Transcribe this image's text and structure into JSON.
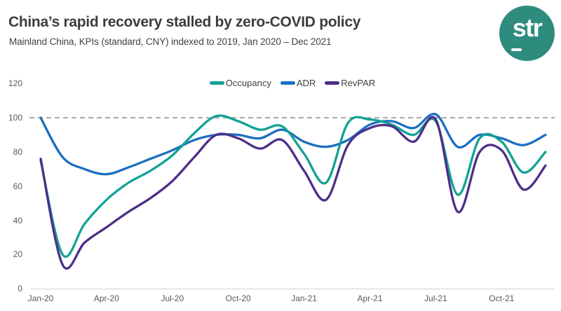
{
  "header": {
    "title": "China’s rapid recovery stalled by zero-COVID policy",
    "subtitle": "Mainland China, KPIs (standard, CNY) indexed to 2019, Jan 2020 – Dec 2021",
    "logo_text": "str"
  },
  "colors": {
    "occupancy": "#12A295",
    "adr": "#1B6FC0",
    "revpar": "#4E2E88",
    "logo_background": "#2E8C7E",
    "reference_line": "#A6A6A6",
    "axis_line": "#D9D9D9",
    "tick_text": "#595959",
    "title_text": "#3C3C3C"
  },
  "chart_data": {
    "type": "line",
    "title": "China’s rapid recovery stalled by zero-COVID policy",
    "subtitle": "Mainland China, KPIs (standard, CNY) indexed to 2019, Jan 2020 – Dec 2021",
    "x": [
      "Jan-20",
      "Feb-20",
      "Mar-20",
      "Apr-20",
      "May-20",
      "Jun-20",
      "Jul-20",
      "Aug-20",
      "Sep-20",
      "Oct-20",
      "Nov-20",
      "Dec-20",
      "Jan-21",
      "Feb-21",
      "Mar-21",
      "Apr-21",
      "May-21",
      "Jun-21",
      "Jul-21",
      "Aug-21",
      "Sep-21",
      "Oct-21",
      "Nov-21",
      "Dec-21"
    ],
    "series": [
      {
        "name": "Occupancy",
        "color": "#12A295",
        "values": [
          75,
          20,
          38,
          52,
          62,
          69,
          78,
          91,
          101,
          98,
          93,
          95,
          79,
          62,
          97,
          99,
          96,
          90,
          98,
          55,
          88,
          86,
          68,
          80
        ]
      },
      {
        "name": "ADR",
        "color": "#1B6FC0",
        "values": [
          100,
          77,
          70,
          67,
          71,
          76,
          81,
          87,
          90,
          90,
          88,
          93,
          86,
          83,
          87,
          96,
          98,
          94,
          102,
          83,
          90,
          88,
          84,
          90
        ]
      },
      {
        "name": "RevPAR",
        "color": "#4E2E88",
        "values": [
          76,
          14,
          27,
          36,
          45,
          53,
          63,
          77,
          90,
          88,
          82,
          87,
          69,
          52,
          84,
          94,
          95,
          86,
          99,
          45,
          80,
          81,
          58,
          72
        ]
      }
    ],
    "ylim": [
      0,
      120
    ],
    "yticks": [
      0,
      20,
      40,
      60,
      80,
      100,
      120
    ],
    "xticks": [
      "Jan-20",
      "Apr-20",
      "Jul-20",
      "Oct-20",
      "Jan-21",
      "Apr-21",
      "Jul-21",
      "Oct-21"
    ],
    "reference_line": 100,
    "grid": false,
    "legend_position": "top-center"
  }
}
